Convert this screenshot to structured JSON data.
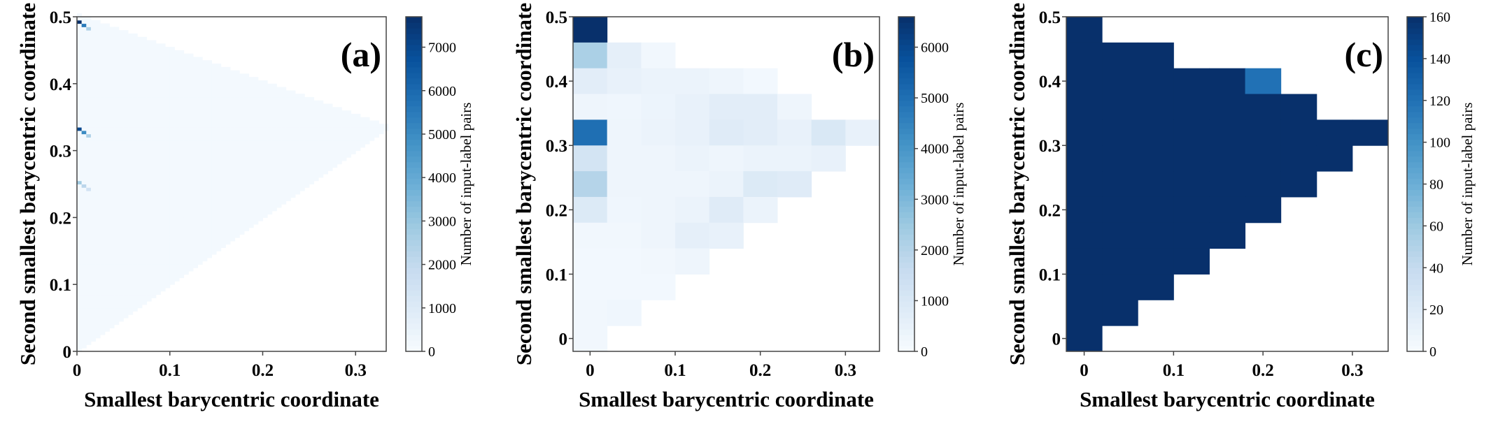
{
  "chart_data": [
    {
      "type": "heatmap",
      "panel_label": "(a)",
      "xlabel": "Smallest barycentric coordinate",
      "ylabel": "Second smallest barycentric coordinate",
      "colorbar_label": "Number of input-label pairs",
      "xlim": [
        0,
        0.333
      ],
      "ylim": [
        0,
        0.5
      ],
      "xticks": [
        "0",
        "0.1",
        "0.2",
        "0.3"
      ],
      "xtick_values": [
        0,
        0.1,
        0.2,
        0.3
      ],
      "yticks": [
        "0",
        "0.1",
        "0.2",
        "0.3",
        "0.4",
        "0.5"
      ],
      "ytick_values": [
        0,
        0.1,
        0.2,
        0.3,
        0.4,
        0.5
      ],
      "colorbar_ticks": [
        "0",
        "1000",
        "2000",
        "3000",
        "4000",
        "5000",
        "6000",
        "7000"
      ],
      "colorbar_tick_values": [
        0,
        1000,
        2000,
        3000,
        4000,
        5000,
        6000,
        7000
      ],
      "vmax": 7700,
      "bin_width": 0.005,
      "background_value": 150,
      "region": "x <= y <= (1 - x) / 2",
      "hotspots": [
        {
          "x": 0.0,
          "y": 0.49,
          "value": 7700
        },
        {
          "x": 0.005,
          "y": 0.485,
          "value": 5500
        },
        {
          "x": 0.0,
          "y": 0.33,
          "value": 7000
        },
        {
          "x": 0.005,
          "y": 0.325,
          "value": 5000
        },
        {
          "x": 0.01,
          "y": 0.32,
          "value": 2500
        },
        {
          "x": 0.0,
          "y": 0.25,
          "value": 2800
        },
        {
          "x": 0.005,
          "y": 0.245,
          "value": 2200
        },
        {
          "x": 0.01,
          "y": 0.24,
          "value": 1500
        },
        {
          "x": 0.01,
          "y": 0.48,
          "value": 2500
        }
      ],
      "colormap": "Blues"
    },
    {
      "type": "heatmap",
      "panel_label": "(b)",
      "xlabel": "Smallest barycentric coordinate",
      "ylabel": "Second smallest barycentric coordinate",
      "colorbar_label": "Number of input-label pairs",
      "xlim": [
        -0.02,
        0.34
      ],
      "ylim": [
        -0.02,
        0.5
      ],
      "xticks": [
        "0",
        "0.1",
        "0.2",
        "0.3"
      ],
      "xtick_values": [
        0,
        0.1,
        0.2,
        0.3
      ],
      "yticks": [
        "0",
        "0.1",
        "0.2",
        "0.3",
        "0.4",
        "0.5"
      ],
      "ytick_values": [
        0,
        0.1,
        0.2,
        0.3,
        0.4,
        0.5
      ],
      "colorbar_ticks": [
        "0",
        "1000",
        "2000",
        "3000",
        "4000",
        "5000",
        "6000"
      ],
      "colorbar_tick_values": [
        0,
        1000,
        2000,
        3000,
        4000,
        5000,
        6000
      ],
      "vmax": 6600,
      "bin_width": 0.04,
      "x_centers": [
        0,
        0.04,
        0.08,
        0.12,
        0.16,
        0.2,
        0.24,
        0.28,
        0.32
      ],
      "rows": [
        {
          "y": 0.48,
          "values": [
            6600
          ]
        },
        {
          "y": 0.44,
          "values": [
            2200,
            600,
            200
          ]
        },
        {
          "y": 0.4,
          "values": [
            700,
            500,
            400,
            400,
            300,
            150
          ]
        },
        {
          "y": 0.36,
          "values": [
            300,
            250,
            350,
            500,
            700,
            700,
            300
          ]
        },
        {
          "y": 0.32,
          "values": [
            5000,
            300,
            400,
            500,
            800,
            700,
            500,
            1000,
            500
          ]
        },
        {
          "y": 0.28,
          "values": [
            1200,
            300,
            300,
            400,
            300,
            400,
            400,
            500
          ]
        },
        {
          "y": 0.24,
          "values": [
            2000,
            300,
            300,
            300,
            400,
            900,
            800
          ]
        },
        {
          "y": 0.2,
          "values": [
            900,
            250,
            300,
            400,
            800,
            400
          ]
        },
        {
          "y": 0.16,
          "values": [
            200,
            200,
            300,
            600,
            500
          ]
        },
        {
          "y": 0.12,
          "values": [
            150,
            150,
            200,
            300
          ]
        },
        {
          "y": 0.08,
          "values": [
            150,
            150,
            150
          ]
        },
        {
          "y": 0.04,
          "values": [
            200,
            250
          ]
        },
        {
          "y": 0.0,
          "values": [
            200
          ]
        }
      ],
      "colormap": "Blues"
    },
    {
      "type": "heatmap",
      "panel_label": "(c)",
      "xlabel": "Smallest barycentric coordinate",
      "ylabel": "Second smallest barycentric coordinate",
      "colorbar_label": "Number of input-label pairs",
      "xlim": [
        -0.02,
        0.34
      ],
      "ylim": [
        -0.02,
        0.5
      ],
      "xticks": [
        "0",
        "0.1",
        "0.2",
        "0.3"
      ],
      "xtick_values": [
        0,
        0.1,
        0.2,
        0.3
      ],
      "yticks": [
        "0",
        "0.1",
        "0.2",
        "0.3",
        "0.4",
        "0.5"
      ],
      "ytick_values": [
        0,
        0.1,
        0.2,
        0.3,
        0.4,
        0.5
      ],
      "colorbar_ticks": [
        "0",
        "20",
        "40",
        "60",
        "80",
        "100",
        "120",
        "140",
        "160"
      ],
      "colorbar_tick_values": [
        0,
        20,
        40,
        60,
        80,
        100,
        120,
        140,
        160
      ],
      "vmax": 160,
      "bin_width": 0.04,
      "x_centers": [
        0,
        0.04,
        0.08,
        0.12,
        0.16,
        0.2,
        0.24,
        0.28,
        0.32
      ],
      "rows": [
        {
          "y": 0.48,
          "values": [
            160
          ]
        },
        {
          "y": 0.44,
          "values": [
            160,
            160,
            160
          ]
        },
        {
          "y": 0.4,
          "values": [
            160,
            160,
            160,
            160,
            160,
            120
          ]
        },
        {
          "y": 0.36,
          "values": [
            160,
            160,
            160,
            160,
            160,
            160,
            160
          ]
        },
        {
          "y": 0.32,
          "values": [
            160,
            160,
            160,
            160,
            160,
            160,
            160,
            160,
            160
          ]
        },
        {
          "y": 0.28,
          "values": [
            160,
            160,
            160,
            160,
            160,
            160,
            160,
            160
          ]
        },
        {
          "y": 0.24,
          "values": [
            160,
            160,
            160,
            160,
            160,
            160,
            160
          ]
        },
        {
          "y": 0.2,
          "values": [
            160,
            160,
            160,
            160,
            160,
            160
          ]
        },
        {
          "y": 0.16,
          "values": [
            160,
            160,
            160,
            160,
            160
          ]
        },
        {
          "y": 0.12,
          "values": [
            160,
            160,
            160,
            160
          ]
        },
        {
          "y": 0.08,
          "values": [
            160,
            160,
            160
          ]
        },
        {
          "y": 0.04,
          "values": [
            160,
            160
          ]
        },
        {
          "y": 0.0,
          "values": [
            160
          ]
        }
      ],
      "colormap": "Blues"
    }
  ]
}
